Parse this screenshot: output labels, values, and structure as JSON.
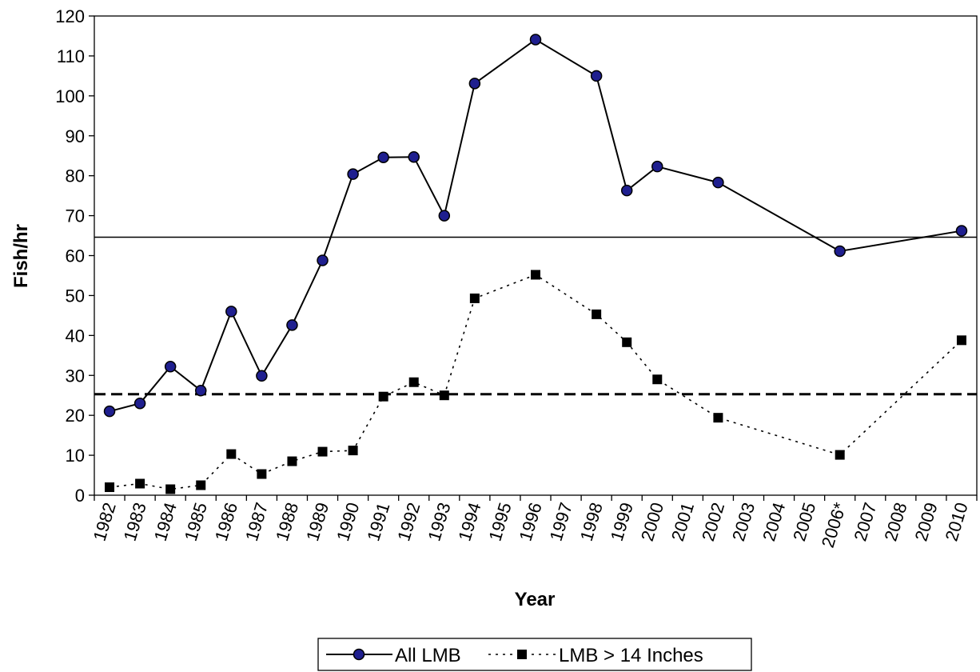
{
  "chart_data": {
    "type": "line",
    "title": "",
    "xlabel": "Year",
    "ylabel": "Fish/hr",
    "ylim": [
      0,
      120
    ],
    "yticks": [
      0,
      10,
      20,
      30,
      40,
      50,
      60,
      70,
      80,
      90,
      100,
      110,
      120
    ],
    "grid": false,
    "legend_position": "bottom-center",
    "categories": [
      "1982",
      "1983",
      "1984",
      "1985",
      "1986",
      "1987",
      "1988",
      "1989",
      "1990",
      "1991",
      "1992",
      "1993",
      "1994",
      "1995",
      "1996",
      "1997",
      "1998",
      "1999",
      "2000",
      "2001",
      "2002",
      "2003",
      "2004",
      "2005",
      "2006*",
      "2007",
      "2008",
      "2009",
      "2010"
    ],
    "series": [
      {
        "name": "All LMB",
        "color": "#000000",
        "marker_fill": "#1f1f8f",
        "line_style": "solid",
        "marker": "circle",
        "values": [
          21.0,
          23.0,
          32.2,
          26.2,
          46.0,
          29.9,
          42.6,
          58.8,
          80.4,
          84.6,
          84.7,
          70.0,
          103.1,
          null,
          114.1,
          null,
          105.0,
          76.3,
          82.3,
          null,
          78.3,
          null,
          null,
          null,
          61.1,
          null,
          null,
          null,
          66.2
        ]
      },
      {
        "name": "LMB > 14 Inches",
        "color": "#000000",
        "line_style": "dotted",
        "marker": "square",
        "values": [
          2.0,
          2.9,
          1.5,
          2.5,
          10.3,
          5.3,
          8.5,
          10.9,
          11.2,
          24.7,
          28.3,
          25.0,
          49.3,
          null,
          55.2,
          null,
          45.3,
          38.3,
          29.0,
          null,
          19.4,
          null,
          null,
          null,
          10.1,
          null,
          null,
          null,
          38.8
        ]
      }
    ],
    "reference_lines": [
      {
        "value": 64.6,
        "style": "solid"
      },
      {
        "value": 25.3,
        "style": "dashed"
      }
    ]
  }
}
